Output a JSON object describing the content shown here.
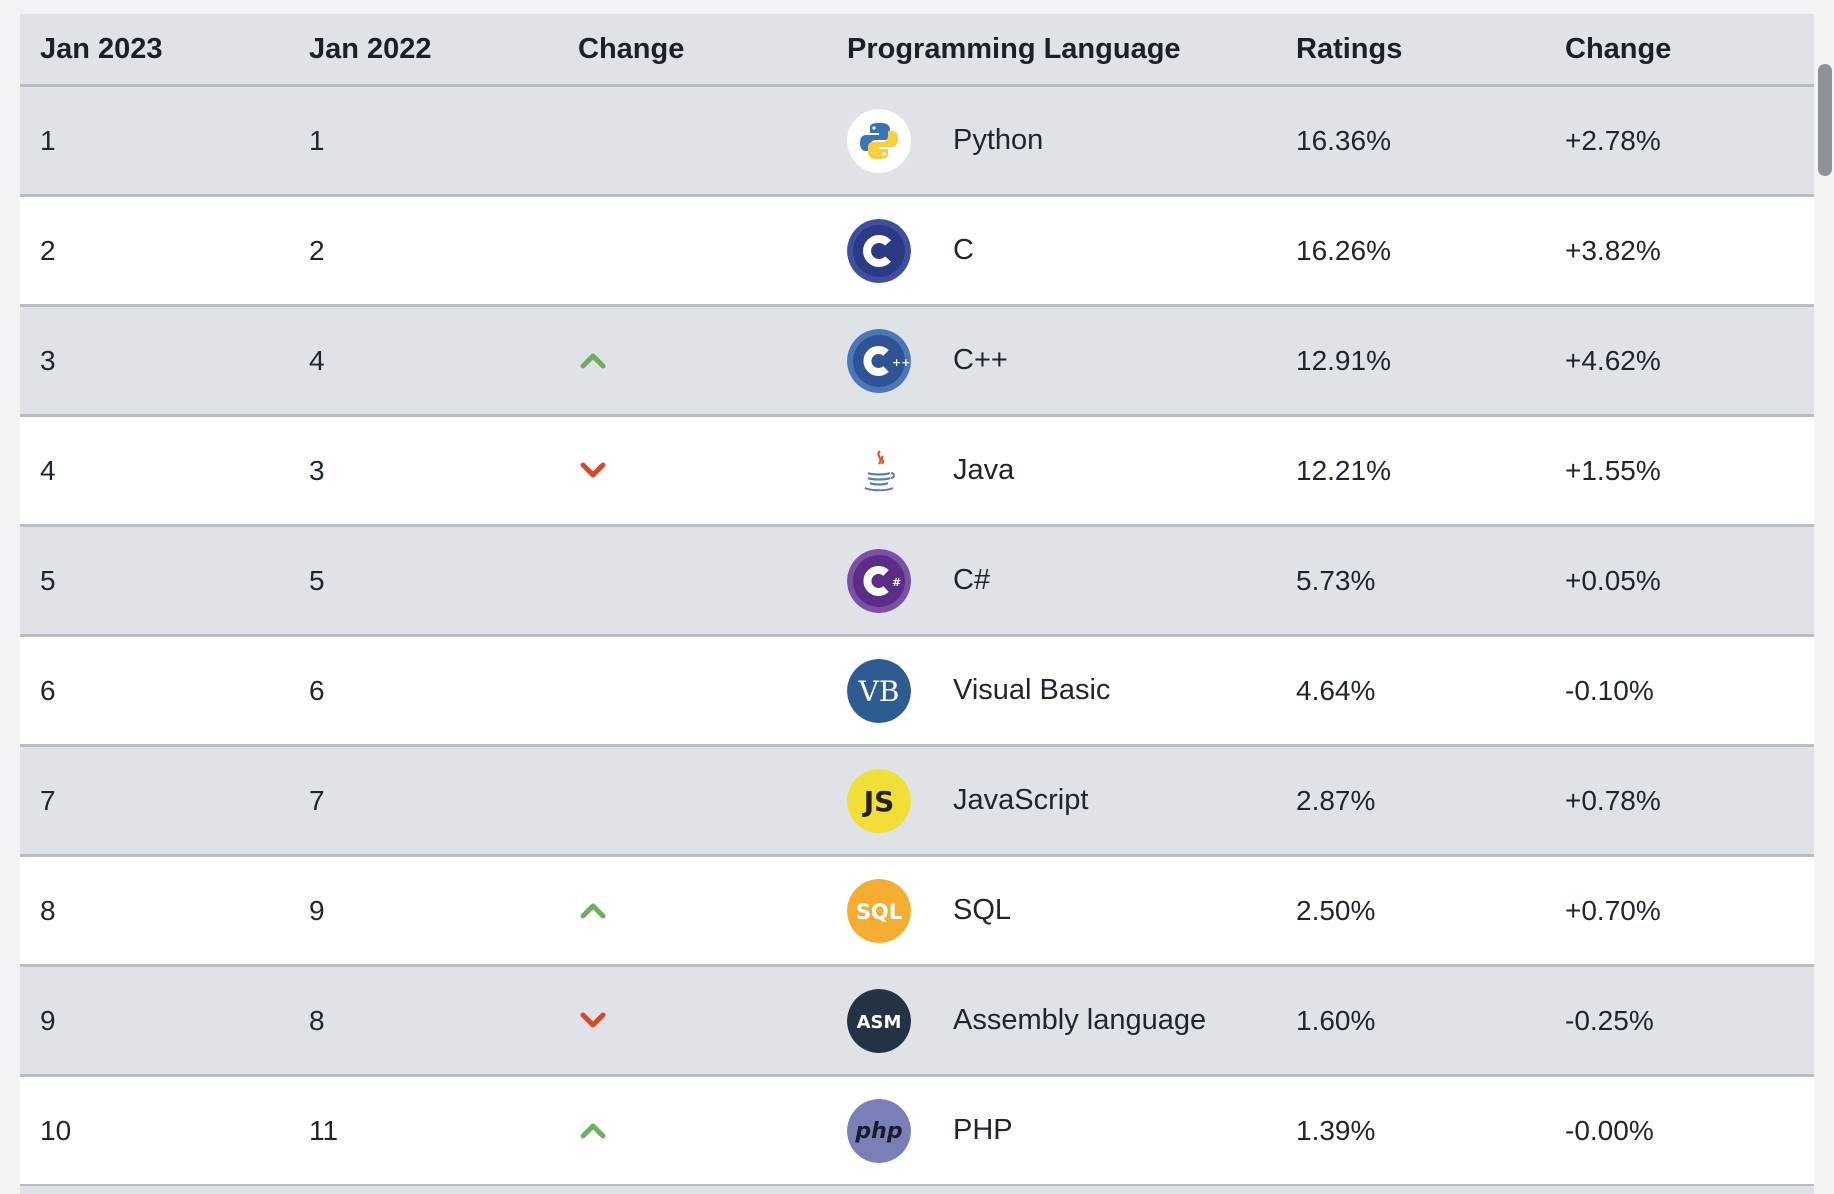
{
  "header": {
    "col1": "Jan 2023",
    "col2": "Jan 2022",
    "col3": "Change",
    "col4": "Programming Language",
    "col5": "Ratings",
    "col6": "Change"
  },
  "rows": [
    {
      "rank_2023": "1",
      "rank_2022": "1",
      "trend": "none",
      "language": "Python",
      "rating": "16.36%",
      "change": "+2.78%",
      "icon": "python-icon"
    },
    {
      "rank_2023": "2",
      "rank_2022": "2",
      "trend": "none",
      "language": "C",
      "rating": "16.26%",
      "change": "+3.82%",
      "icon": "c-icon"
    },
    {
      "rank_2023": "3",
      "rank_2022": "4",
      "trend": "up",
      "language": "C++",
      "rating": "12.91%",
      "change": "+4.62%",
      "icon": "cpp-icon"
    },
    {
      "rank_2023": "4",
      "rank_2022": "3",
      "trend": "down",
      "language": "Java",
      "rating": "12.21%",
      "change": "+1.55%",
      "icon": "java-icon"
    },
    {
      "rank_2023": "5",
      "rank_2022": "5",
      "trend": "none",
      "language": "C#",
      "rating": "5.73%",
      "change": "+0.05%",
      "icon": "csharp-icon"
    },
    {
      "rank_2023": "6",
      "rank_2022": "6",
      "trend": "none",
      "language": "Visual Basic",
      "rating": "4.64%",
      "change": "-0.10%",
      "icon": "visual-basic-icon",
      "icon_text": "VB"
    },
    {
      "rank_2023": "7",
      "rank_2022": "7",
      "trend": "none",
      "language": "JavaScript",
      "rating": "2.87%",
      "change": "+0.78%",
      "icon": "javascript-icon",
      "icon_text": "JS"
    },
    {
      "rank_2023": "8",
      "rank_2022": "9",
      "trend": "up",
      "language": "SQL",
      "rating": "2.50%",
      "change": "+0.70%",
      "icon": "sql-icon",
      "icon_text": "SQL"
    },
    {
      "rank_2023": "9",
      "rank_2022": "8",
      "trend": "down",
      "language": "Assembly language",
      "rating": "1.60%",
      "change": "-0.25%",
      "icon": "assembly-icon",
      "icon_text": "ASM"
    },
    {
      "rank_2023": "10",
      "rank_2022": "11",
      "trend": "up",
      "language": "PHP",
      "rating": "1.39%",
      "change": "-0.00%",
      "icon": "php-icon",
      "icon_text": "php"
    }
  ],
  "colors": {
    "up_arrow": "#6fae5e",
    "down_arrow": "#d9472b"
  }
}
